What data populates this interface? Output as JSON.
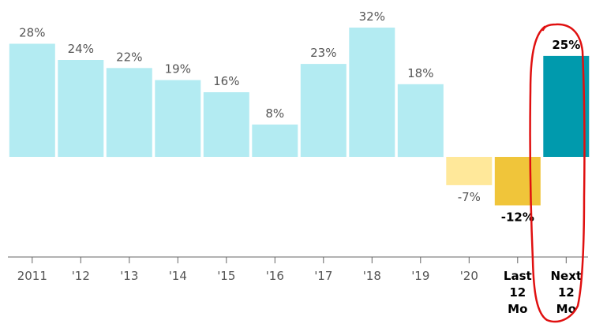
{
  "chart_data": {
    "type": "bar",
    "categories": [
      "2011",
      "'12",
      "'13",
      "'14",
      "'15",
      "'16",
      "'17",
      "'18",
      "'19",
      "'20",
      "Last 12 Mo",
      "Next 12 Mo"
    ],
    "values": [
      28,
      24,
      22,
      19,
      16,
      8,
      23,
      32,
      18,
      -7,
      -12,
      25
    ],
    "value_labels": [
      "28%",
      "24%",
      "22%",
      "19%",
      "16%",
      "8%",
      "23%",
      "32%",
      "18%",
      "-7%",
      "-12%",
      "25%"
    ],
    "bar_colors": [
      "#b3ebf2",
      "#b3ebf2",
      "#b3ebf2",
      "#b3ebf2",
      "#b3ebf2",
      "#b3ebf2",
      "#b3ebf2",
      "#b3ebf2",
      "#b3ebf2",
      "#ffe89a",
      "#f0c53a",
      "#009aad"
    ],
    "bold_categories": [
      "Last 12 Mo",
      "Next 12 Mo"
    ],
    "ylim": [
      -12,
      32
    ],
    "grid": false,
    "annotation_color": "#e01010"
  }
}
